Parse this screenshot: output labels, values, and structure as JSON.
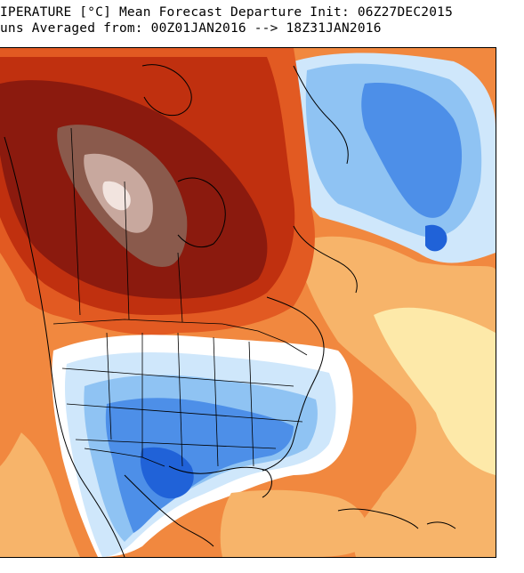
{
  "header": {
    "line1": "IPERATURE [°C] Mean Forecast Departure Init: 06Z27DEC2015",
    "line2": "uns Averaged from: 00Z01JAN2016 --> 18Z31JAN2016"
  },
  "map": {
    "colors": {
      "extreme_warm": "#f2e4df",
      "very_warm_light": "#c8a89e",
      "very_warm": "#8a5a4c",
      "dark_red": "#8b1a0e",
      "red": "#c0300f",
      "orange_red": "#e25a22",
      "orange": "#f1883f",
      "light_orange": "#f7b46a",
      "pale_yellow": "#fde9a9",
      "white": "#ffffff",
      "pale_blue": "#cfe7fb",
      "light_blue": "#8fc3f3",
      "blue": "#4d8fe8",
      "deep_blue": "#2062d8",
      "coast_line": "#000000"
    }
  }
}
